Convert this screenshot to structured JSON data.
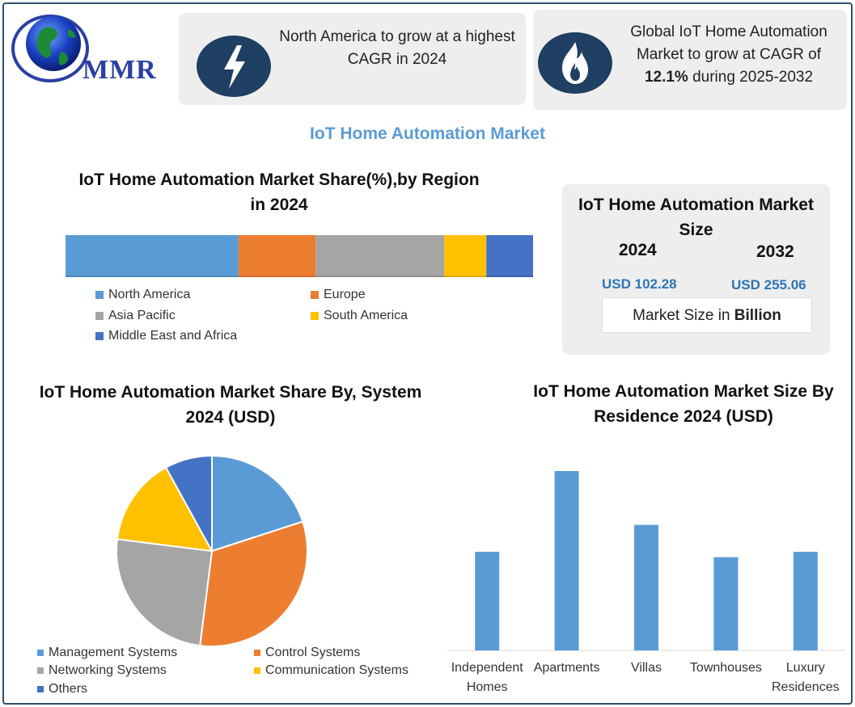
{
  "logo": {
    "text": "MMR"
  },
  "highlights": [
    {
      "icon": "lightning-icon",
      "text": "North America to grow at a highest CAGR in 2024"
    },
    {
      "icon": "flame-icon",
      "text_before": "Global IoT Home Automation Market to grow at CAGR of ",
      "highlight": "12.1%",
      "text_after": " during 2025-2032"
    }
  ],
  "main_title": "IoT Home Automation Market",
  "market_size": {
    "title": "IoT Home Automation Market Size",
    "years": [
      "2024",
      "2032"
    ],
    "values": [
      "USD 102.28",
      "USD 255.06"
    ],
    "unit_prefix": "Market Size in ",
    "unit_bold": "Billion"
  },
  "colors": {
    "blue": "#5b9bd5",
    "orange": "#ed7d31",
    "gray": "#a5a5a5",
    "yellow": "#ffc000",
    "darkblue": "#4472c4",
    "navy": "#1f3f63"
  },
  "chart_data": [
    {
      "type": "bar",
      "orientation": "horizontal-stacked",
      "title": "IoT Home Automation Market Share(%),by Region in 2024",
      "series": [
        {
          "name": "North America",
          "values": [
            37
          ],
          "color": "#5b9bd5"
        },
        {
          "name": "Europe",
          "values": [
            16.5
          ],
          "color": "#ed7d31"
        },
        {
          "name": "Asia Pacific",
          "values": [
            27.5
          ],
          "color": "#a5a5a5"
        },
        {
          "name": "South America",
          "values": [
            9
          ],
          "color": "#ffc000"
        },
        {
          "name": "Middle East and Africa",
          "values": [
            10
          ],
          "color": "#4472c4"
        }
      ],
      "legend": "bottom"
    },
    {
      "type": "pie",
      "title": "IoT Home Automation Market Share By, System 2024  (USD)",
      "slices": [
        {
          "name": "Management Systems",
          "value": 20,
          "color": "#5b9bd5"
        },
        {
          "name": "Control Systems",
          "value": 32,
          "color": "#ed7d31"
        },
        {
          "name": "Networking Systems",
          "value": 25,
          "color": "#a5a5a5"
        },
        {
          "name": "Communication Systems",
          "value": 15,
          "color": "#ffc000"
        },
        {
          "name": "Others",
          "value": 8,
          "color": "#4472c4"
        }
      ],
      "legend": "bottom"
    },
    {
      "type": "bar",
      "title": "IoT Home Automation Market  Size By Residence 2024  (USD)",
      "categories": [
        [
          "Independent",
          "Homes"
        ],
        [
          "Apartments"
        ],
        [
          "Villas"
        ],
        [
          "Townhouses"
        ],
        [
          "Luxury",
          "Residences"
        ]
      ],
      "values": [
        55,
        100,
        70,
        52,
        55
      ],
      "ylim": [
        0,
        100
      ],
      "color": "#5b9bd5",
      "grid": false
    }
  ]
}
